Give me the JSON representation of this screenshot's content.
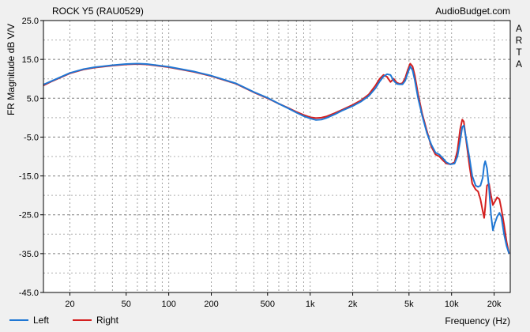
{
  "chart_data": {
    "type": "line",
    "title": "ROCK Y5 (RAU0529)",
    "watermark": "AudioBudget.com",
    "side_label": [
      "A",
      "R",
      "T",
      "A"
    ],
    "xlabel": "Frequency (Hz)",
    "ylabel": "FR Magnitude dB V/V",
    "x_scale": "log",
    "xlim": [
      13,
      26000
    ],
    "ylim": [
      -45,
      25
    ],
    "y_ticks": [
      25.0,
      15.0,
      5.0,
      -5.0,
      -15.0,
      -25.0,
      -35.0,
      -45.0
    ],
    "y_tick_labels": [
      "25.0",
      "15.0",
      "5.0",
      "-5.0",
      "-15.0",
      "-25.0",
      "-35.0",
      "-45.0"
    ],
    "x_tick_values": [
      20,
      50,
      100,
      200,
      500,
      1000,
      2000,
      5000,
      10000,
      20000
    ],
    "x_tick_labels": [
      "20",
      "50",
      "100",
      "200",
      "500",
      "1k",
      "2k",
      "5k",
      "10k",
      "20k"
    ],
    "grid": true,
    "legend_position": "bottom-left",
    "background_color": "#f0f0f0",
    "plot_background": "#ffffff",
    "series": [
      {
        "name": "Left",
        "color": "#1f77d4",
        "points": [
          [
            13,
            8.5
          ],
          [
            15,
            9.5
          ],
          [
            20,
            11.5
          ],
          [
            25,
            12.5
          ],
          [
            30,
            13.0
          ],
          [
            40,
            13.5
          ],
          [
            50,
            13.8
          ],
          [
            60,
            13.9
          ],
          [
            70,
            13.8
          ],
          [
            100,
            13.1
          ],
          [
            150,
            11.9
          ],
          [
            200,
            10.8
          ],
          [
            300,
            8.8
          ],
          [
            400,
            6.6
          ],
          [
            500,
            5.1
          ],
          [
            600,
            3.6
          ],
          [
            700,
            2.4
          ],
          [
            800,
            1.3
          ],
          [
            900,
            0.4
          ],
          [
            1000,
            -0.2
          ],
          [
            1100,
            -0.6
          ],
          [
            1200,
            -0.5
          ],
          [
            1300,
            -0.1
          ],
          [
            1500,
            0.9
          ],
          [
            1700,
            1.9
          ],
          [
            2000,
            3.0
          ],
          [
            2300,
            4.2
          ],
          [
            2600,
            5.6
          ],
          [
            2900,
            7.6
          ],
          [
            3100,
            9.3
          ],
          [
            3300,
            10.6
          ],
          [
            3500,
            11.2
          ],
          [
            3700,
            11.0
          ],
          [
            3900,
            9.5
          ],
          [
            4100,
            8.7
          ],
          [
            4300,
            8.6
          ],
          [
            4500,
            8.6
          ],
          [
            4700,
            9.5
          ],
          [
            4900,
            11.5
          ],
          [
            5100,
            13.2
          ],
          [
            5300,
            12.2
          ],
          [
            5500,
            9.6
          ],
          [
            5800,
            5.0
          ],
          [
            6200,
            0.5
          ],
          [
            6700,
            -4.0
          ],
          [
            7200,
            -7.0
          ],
          [
            7700,
            -9.0
          ],
          [
            8200,
            -9.5
          ],
          [
            8700,
            -10.5
          ],
          [
            9200,
            -11.5
          ],
          [
            9800,
            -12.0
          ],
          [
            10500,
            -11.8
          ],
          [
            11000,
            -10.0
          ],
          [
            11500,
            -6.0
          ],
          [
            11900,
            -2.4
          ],
          [
            12200,
            -2.0
          ],
          [
            12700,
            -5.5
          ],
          [
            13400,
            -10.5
          ],
          [
            14000,
            -15.0
          ],
          [
            14800,
            -17.5
          ],
          [
            15400,
            -17.8
          ],
          [
            16000,
            -17.5
          ],
          [
            16600,
            -15.5
          ],
          [
            17000,
            -12.2
          ],
          [
            17300,
            -11.2
          ],
          [
            17800,
            -13.0
          ],
          [
            18400,
            -18.0
          ],
          [
            19000,
            -25.0
          ],
          [
            19600,
            -29.0
          ],
          [
            20300,
            -27.0
          ],
          [
            21000,
            -25.5
          ],
          [
            21800,
            -24.5
          ],
          [
            22500,
            -25.5
          ],
          [
            23500,
            -30.0
          ],
          [
            24500,
            -33.0
          ],
          [
            25500,
            -35.0
          ]
        ]
      },
      {
        "name": "Right",
        "color": "#d41f1f",
        "points": [
          [
            13,
            8.3
          ],
          [
            15,
            9.4
          ],
          [
            20,
            11.4
          ],
          [
            25,
            12.4
          ],
          [
            30,
            12.9
          ],
          [
            40,
            13.4
          ],
          [
            50,
            13.7
          ],
          [
            60,
            13.8
          ],
          [
            70,
            13.7
          ],
          [
            100,
            13.0
          ],
          [
            150,
            11.8
          ],
          [
            200,
            10.7
          ],
          [
            300,
            8.7
          ],
          [
            400,
            6.5
          ],
          [
            500,
            5.0
          ],
          [
            600,
            3.6
          ],
          [
            700,
            2.5
          ],
          [
            800,
            1.5
          ],
          [
            900,
            0.7
          ],
          [
            1000,
            0.1
          ],
          [
            1100,
            -0.1
          ],
          [
            1200,
            0.0
          ],
          [
            1300,
            0.3
          ],
          [
            1500,
            1.2
          ],
          [
            1700,
            2.1
          ],
          [
            2000,
            3.3
          ],
          [
            2300,
            4.5
          ],
          [
            2600,
            6.0
          ],
          [
            2900,
            8.3
          ],
          [
            3100,
            10.0
          ],
          [
            3300,
            11.0
          ],
          [
            3500,
            10.5
          ],
          [
            3700,
            9.2
          ],
          [
            3900,
            10.0
          ],
          [
            4100,
            9.0
          ],
          [
            4300,
            8.7
          ],
          [
            4500,
            8.9
          ],
          [
            4700,
            10.2
          ],
          [
            4900,
            12.3
          ],
          [
            5100,
            13.9
          ],
          [
            5300,
            13.2
          ],
          [
            5500,
            10.8
          ],
          [
            5800,
            6.0
          ],
          [
            6200,
            1.0
          ],
          [
            6700,
            -3.5
          ],
          [
            7200,
            -7.5
          ],
          [
            7700,
            -9.5
          ],
          [
            8200,
            -10.0
          ],
          [
            8700,
            -11.0
          ],
          [
            9200,
            -11.8
          ],
          [
            9800,
            -12.0
          ],
          [
            10500,
            -11.5
          ],
          [
            11000,
            -8.5
          ],
          [
            11500,
            -3.0
          ],
          [
            11900,
            -0.5
          ],
          [
            12200,
            -1.0
          ],
          [
            12700,
            -6.0
          ],
          [
            13400,
            -12.5
          ],
          [
            14000,
            -17.0
          ],
          [
            14800,
            -18.5
          ],
          [
            15400,
            -19.0
          ],
          [
            16000,
            -21.0
          ],
          [
            16600,
            -24.0
          ],
          [
            17000,
            -25.8
          ],
          [
            17300,
            -23.0
          ],
          [
            17800,
            -17.5
          ],
          [
            18400,
            -17.0
          ],
          [
            19000,
            -20.0
          ],
          [
            19600,
            -22.5
          ],
          [
            20300,
            -21.5
          ],
          [
            21000,
            -20.5
          ],
          [
            21800,
            -21.0
          ],
          [
            22500,
            -23.5
          ],
          [
            23500,
            -27.5
          ],
          [
            24500,
            -32.0
          ],
          [
            25500,
            -35.0
          ]
        ]
      }
    ]
  }
}
